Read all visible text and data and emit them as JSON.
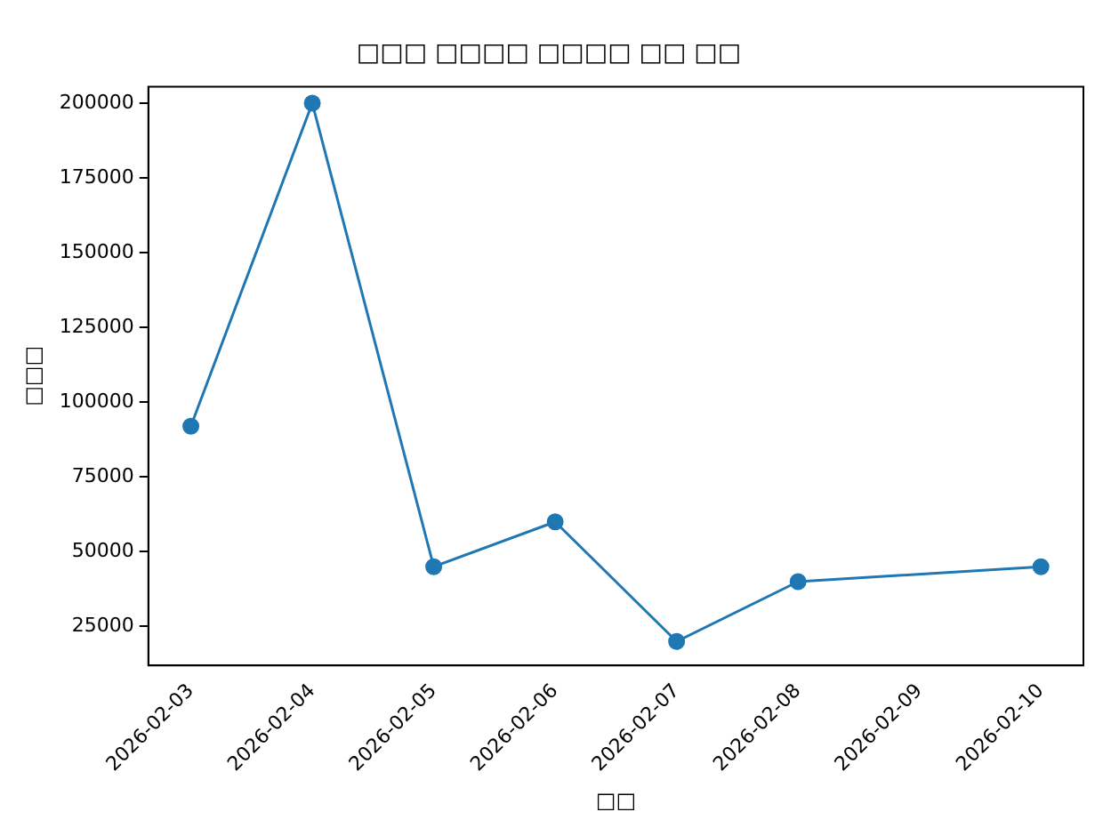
{
  "chart_data": {
    "type": "line",
    "title": "□□□ □□□□ □□□□ □□ □□",
    "xlabel": "□□",
    "ylabel": "□□□",
    "x": [
      "2026-02-03",
      "2026-02-04",
      "2026-02-05",
      "2026-02-06",
      "2026-02-07",
      "2026-02-08",
      "2026-02-10"
    ],
    "series": [
      {
        "color": "#1f77b4",
        "values": [
          92000,
          200000,
          45000,
          60000,
          20000,
          40000,
          45000
        ]
      }
    ],
    "xlim": [
      "2026-02-02T15:36",
      "2026-02-10T08:24"
    ],
    "xticks": [
      "2026-02-03",
      "2026-02-04",
      "2026-02-05",
      "2026-02-06",
      "2026-02-07",
      "2026-02-08",
      "2026-02-09",
      "2026-02-10"
    ],
    "ylim": [
      12000,
      205500
    ],
    "yticks": [
      25000,
      50000,
      75000,
      100000,
      125000,
      150000,
      175000,
      200000
    ],
    "marker": "circle",
    "line_style": "solid",
    "grid": false,
    "legend": false
  }
}
